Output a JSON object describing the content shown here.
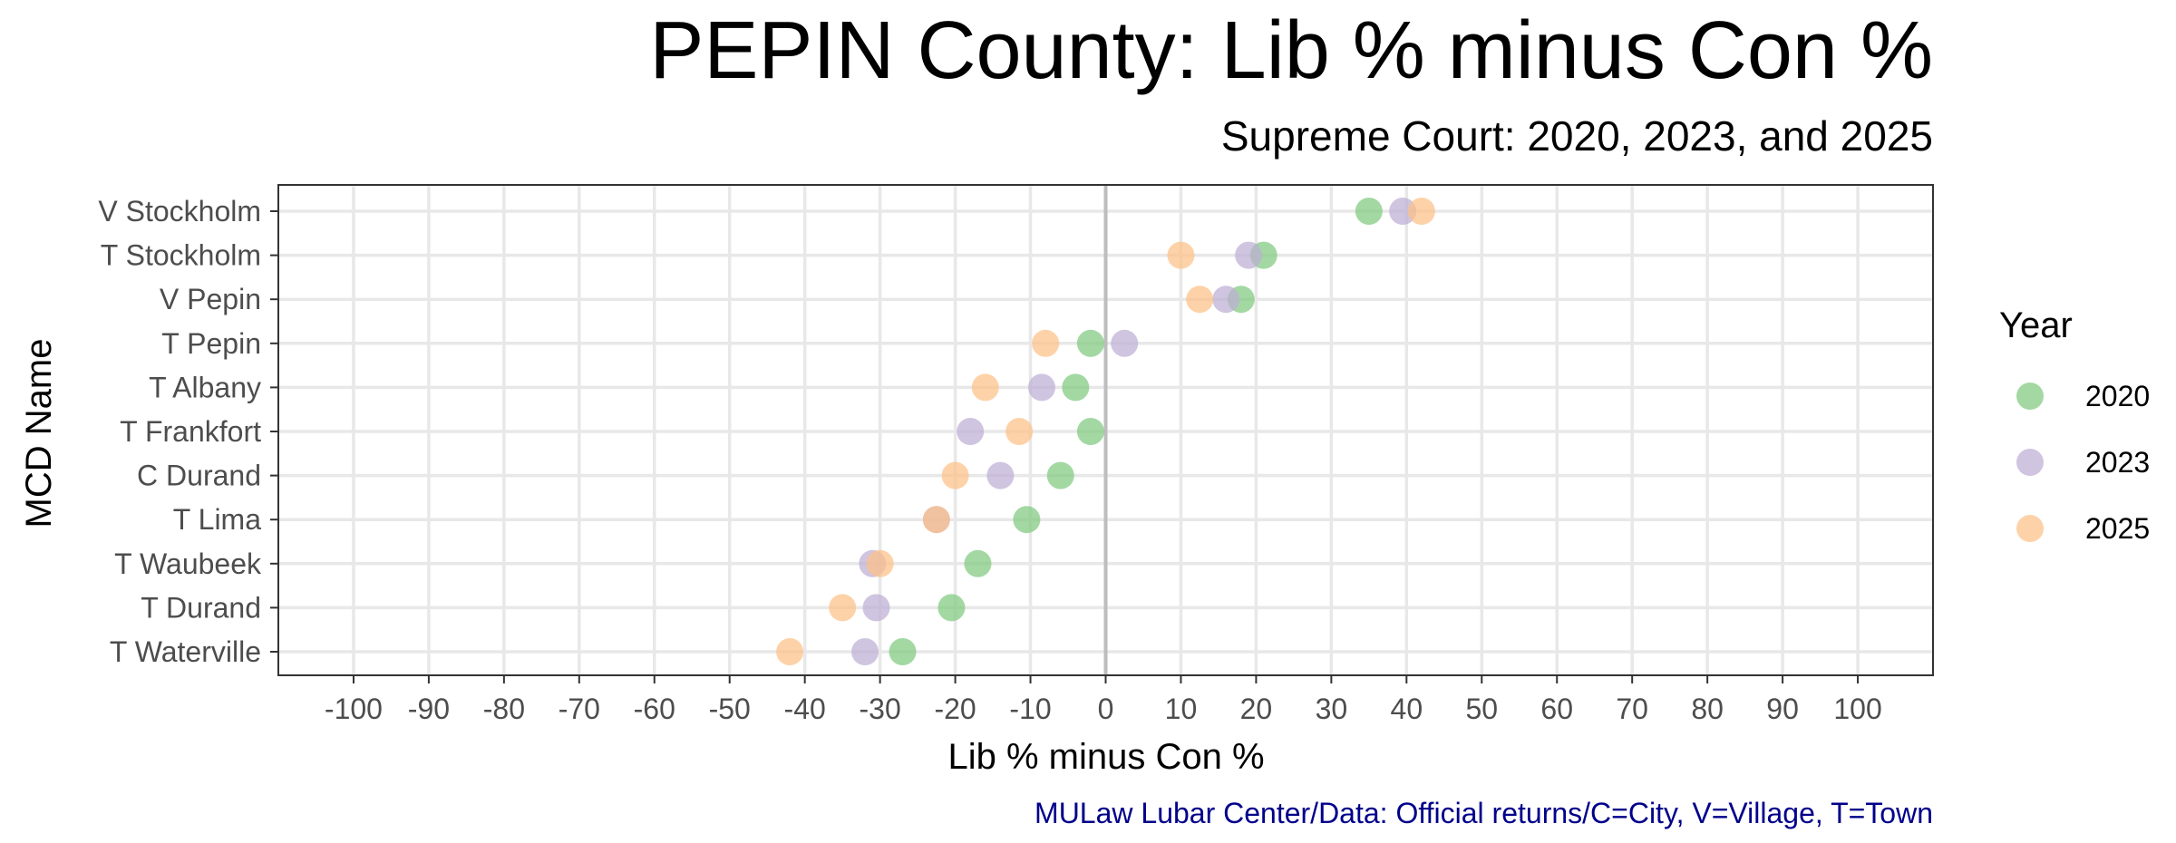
{
  "chart_data": {
    "type": "scatter",
    "title": "PEPIN County: Lib % minus Con %",
    "subtitle": "Supreme Court: 2020, 2023, and 2025",
    "xlabel": "Lib % minus Con %",
    "ylabel": "MCD Name",
    "caption": "MULaw Lubar Center/Data: Official returns/C=City, V=Village, T=Town",
    "xlim": [
      -110,
      110
    ],
    "xticks": [
      -100,
      -90,
      -80,
      -70,
      -60,
      -50,
      -40,
      -30,
      -20,
      -10,
      0,
      10,
      20,
      30,
      40,
      50,
      60,
      70,
      80,
      90,
      100
    ],
    "categories": [
      "V Stockholm",
      "T Stockholm",
      "V Pepin",
      "T Pepin",
      "T Albany",
      "T Frankfort",
      "C Durand",
      "T Lima",
      "T Waubeek",
      "T Durand",
      "T Waterville"
    ],
    "reference_line_x": 0,
    "grid": true,
    "legend_title": "Year",
    "legend_position": "right",
    "series": [
      {
        "name": "2020",
        "color": "#7fc97f",
        "values": [
          35,
          21,
          18,
          -2,
          -4,
          -2,
          -6,
          -10.5,
          -17,
          -20.5,
          -27
        ]
      },
      {
        "name": "2023",
        "color": "#beaed4",
        "values": [
          39.5,
          19,
          16,
          2.5,
          -8.5,
          -18,
          -14,
          -22.5,
          -31,
          -30.5,
          -32
        ]
      },
      {
        "name": "2025",
        "color": "#fdc086",
        "values": [
          42,
          10,
          12.5,
          -8,
          -16,
          -11.5,
          -20,
          -22.5,
          -30,
          -35,
          -42
        ]
      }
    ]
  }
}
